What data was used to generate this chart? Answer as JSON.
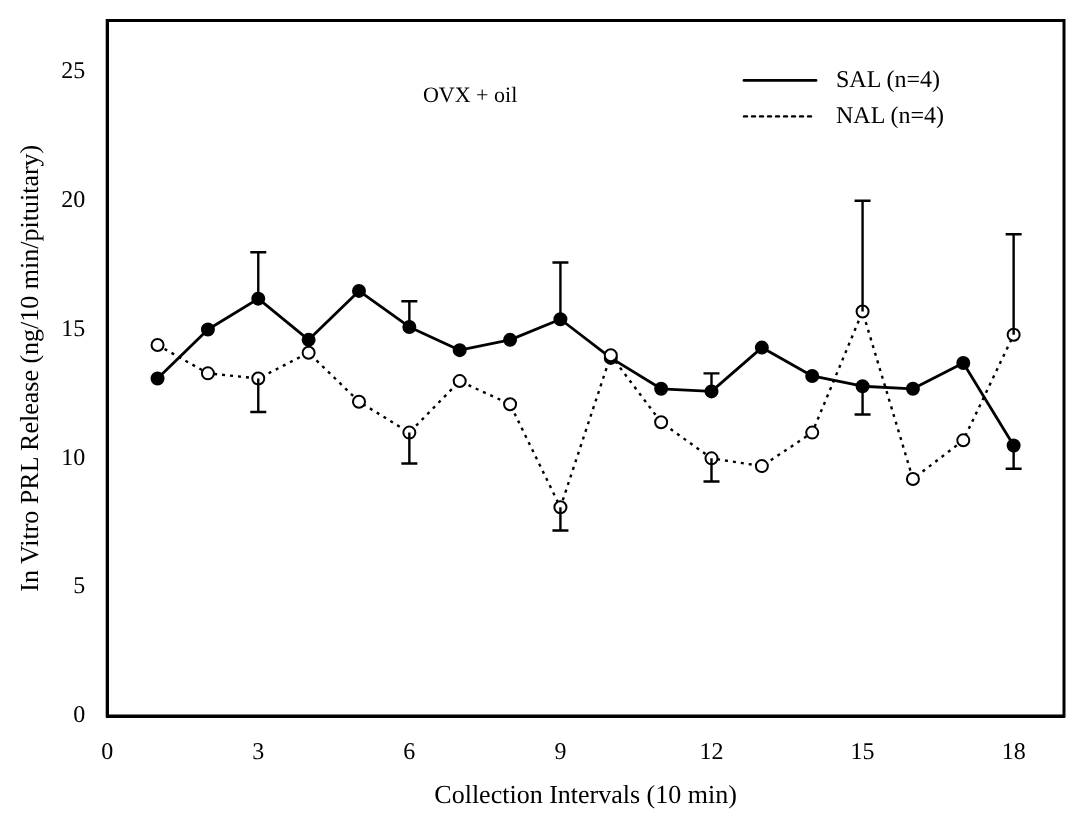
{
  "chart_data": {
    "type": "line",
    "xlabel": "Collection Intervals (10 min)",
    "ylabel": "In Vitro PRL Release (ng/10 min/pituitary)",
    "annotations": [
      "OVX + oil"
    ],
    "x": [
      1,
      2,
      3,
      4,
      5,
      6,
      7,
      8,
      9,
      10,
      11,
      12,
      13,
      14,
      15,
      16,
      17,
      18
    ],
    "series": [
      {
        "name": "SAL (n=4)",
        "color": "#000000",
        "marker": "circle",
        "line_style": "solid",
        "values": [
          13.1,
          15.0,
          16.2,
          14.6,
          16.5,
          15.1,
          14.2,
          14.6,
          15.4,
          13.9,
          12.7,
          12.6,
          14.3,
          13.2,
          12.8,
          12.7,
          13.7,
          10.5
        ],
        "errors": [
          null,
          null,
          [
            16.2,
            18.0
          ],
          null,
          null,
          [
            15.1,
            16.1
          ],
          null,
          null,
          [
            15.4,
            17.6
          ],
          null,
          null,
          [
            12.6,
            13.3
          ],
          null,
          null,
          [
            11.7,
            12.8
          ],
          null,
          null,
          [
            9.6,
            10.5
          ]
        ]
      },
      {
        "name": "NAL (n=4)",
        "color": "#000000",
        "marker": "circle",
        "line_style": "dotted",
        "values": [
          14.4,
          13.3,
          13.1,
          14.1,
          12.2,
          11.0,
          13.0,
          12.1,
          8.1,
          14.0,
          11.4,
          10.0,
          9.7,
          11.0,
          15.7,
          9.2,
          10.7,
          14.8
        ],
        "errors": [
          null,
          null,
          [
            11.8,
            13.1
          ],
          null,
          null,
          [
            9.8,
            11.0
          ],
          null,
          null,
          [
            7.2,
            8.1
          ],
          null,
          null,
          [
            9.1,
            10.0
          ],
          null,
          null,
          [
            15.7,
            20.0
          ],
          null,
          null,
          [
            14.8,
            18.7
          ]
        ]
      }
    ],
    "xlim": [
      0,
      19
    ],
    "xticks": [
      0,
      3,
      6,
      9,
      12,
      15,
      18
    ],
    "ylim": [
      0,
      27
    ],
    "yticks": [
      0,
      5,
      10,
      15,
      20,
      25
    ],
    "grid": false,
    "legend": "top right"
  }
}
